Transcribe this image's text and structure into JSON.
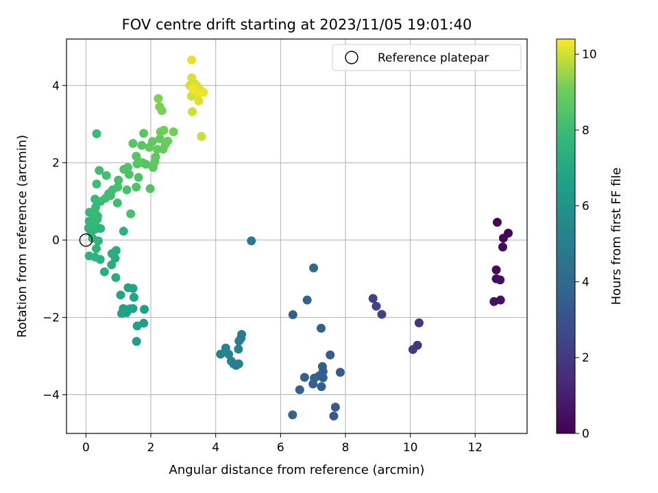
{
  "chart_data": {
    "type": "scatter",
    "title": "FOV centre drift starting at 2023/11/05 19:01:40",
    "xlabel": "Angular distance from reference (arcmin)",
    "ylabel": "Rotation from reference (arcmin)",
    "xlim": [
      -0.6,
      13.6
    ],
    "ylim": [
      -5.0,
      5.2
    ],
    "xticks": [
      0,
      2,
      4,
      6,
      8,
      10,
      12
    ],
    "yticks": [
      -4,
      -2,
      0,
      2,
      4
    ],
    "grid": true,
    "legend": {
      "position": "top-right",
      "entries": [
        "Reference platepar"
      ]
    },
    "reference_point": {
      "x": 0,
      "y": 0
    },
    "colorbar": {
      "label": "Hours from first FF file",
      "range": [
        0,
        10.4
      ],
      "ticks": [
        0,
        2,
        4,
        6,
        8,
        10
      ],
      "colormap": "viridis"
    },
    "points": [
      {
        "x": 12.68,
        "y": 0.46,
        "c": 0.1
      },
      {
        "x": 13.02,
        "y": 0.18,
        "c": 0.15
      },
      {
        "x": 12.87,
        "y": 0.05,
        "c": 0.2
      },
      {
        "x": 12.85,
        "y": -0.18,
        "c": 0.3
      },
      {
        "x": 12.65,
        "y": -0.77,
        "c": 0.35
      },
      {
        "x": 12.65,
        "y": -1.0,
        "c": 0.4
      },
      {
        "x": 12.77,
        "y": -1.03,
        "c": 0.45
      },
      {
        "x": 12.78,
        "y": -1.55,
        "c": 0.5
      },
      {
        "x": 12.58,
        "y": -1.59,
        "c": 0.55
      },
      {
        "x": 10.27,
        "y": -2.14,
        "c": 1.8
      },
      {
        "x": 10.22,
        "y": -2.72,
        "c": 1.9
      },
      {
        "x": 10.08,
        "y": -2.83,
        "c": 2.0
      },
      {
        "x": 8.85,
        "y": -1.51,
        "c": 2.3
      },
      {
        "x": 8.95,
        "y": -1.71,
        "c": 2.4
      },
      {
        "x": 9.12,
        "y": -1.92,
        "c": 2.45
      },
      {
        "x": 7.02,
        "y": -0.72,
        "c": 3.9
      },
      {
        "x": 6.82,
        "y": -1.55,
        "c": 3.7
      },
      {
        "x": 6.38,
        "y": -1.93,
        "c": 3.5
      },
      {
        "x": 7.25,
        "y": -2.28,
        "c": 3.6
      },
      {
        "x": 7.53,
        "y": -2.97,
        "c": 3.4
      },
      {
        "x": 7.29,
        "y": -3.27,
        "c": 3.5
      },
      {
        "x": 7.31,
        "y": -3.4,
        "c": 3.45
      },
      {
        "x": 7.19,
        "y": -3.51,
        "c": 3.55
      },
      {
        "x": 7.04,
        "y": -3.57,
        "c": 3.6
      },
      {
        "x": 7.31,
        "y": -3.56,
        "c": 3.55
      },
      {
        "x": 7.84,
        "y": -3.42,
        "c": 3.3
      },
      {
        "x": 6.74,
        "y": -3.55,
        "c": 3.65
      },
      {
        "x": 7.0,
        "y": -3.72,
        "c": 3.6
      },
      {
        "x": 7.26,
        "y": -3.79,
        "c": 3.5
      },
      {
        "x": 6.59,
        "y": -3.87,
        "c": 3.7
      },
      {
        "x": 7.69,
        "y": -4.32,
        "c": 3.35
      },
      {
        "x": 7.64,
        "y": -4.55,
        "c": 3.3
      },
      {
        "x": 6.37,
        "y": -4.52,
        "c": 3.8
      },
      {
        "x": 5.1,
        "y": -0.02,
        "c": 4.7
      },
      {
        "x": 4.8,
        "y": -2.44,
        "c": 5.0
      },
      {
        "x": 4.72,
        "y": -2.61,
        "c": 5.05
      },
      {
        "x": 4.78,
        "y": -2.54,
        "c": 5.0
      },
      {
        "x": 4.7,
        "y": -2.82,
        "c": 5.1
      },
      {
        "x": 4.31,
        "y": -2.79,
        "c": 5.2
      },
      {
        "x": 4.15,
        "y": -2.95,
        "c": 5.25
      },
      {
        "x": 4.4,
        "y": -2.95,
        "c": 5.2
      },
      {
        "x": 4.48,
        "y": -3.13,
        "c": 5.15
      },
      {
        "x": 4.55,
        "y": -3.2,
        "c": 5.1
      },
      {
        "x": 4.63,
        "y": -3.24,
        "c": 5.05
      },
      {
        "x": 4.71,
        "y": -3.2,
        "c": 5.1
      },
      {
        "x": 1.3,
        "y": -1.23,
        "c": 6.8
      },
      {
        "x": 1.45,
        "y": -1.25,
        "c": 6.75
      },
      {
        "x": 1.07,
        "y": -1.42,
        "c": 6.85
      },
      {
        "x": 1.48,
        "y": -1.48,
        "c": 6.8
      },
      {
        "x": 1.15,
        "y": -1.77,
        "c": 6.7
      },
      {
        "x": 1.35,
        "y": -1.78,
        "c": 6.75
      },
      {
        "x": 1.45,
        "y": -1.77,
        "c": 6.7
      },
      {
        "x": 1.8,
        "y": -1.79,
        "c": 6.6
      },
      {
        "x": 1.1,
        "y": -1.9,
        "c": 6.7
      },
      {
        "x": 1.25,
        "y": -1.88,
        "c": 6.7
      },
      {
        "x": 1.78,
        "y": -2.15,
        "c": 6.55
      },
      {
        "x": 1.58,
        "y": -2.22,
        "c": 6.6
      },
      {
        "x": 1.56,
        "y": -2.62,
        "c": 6.5
      },
      {
        "x": 0.93,
        "y": -0.27,
        "c": 7.2
      },
      {
        "x": 0.9,
        "y": -0.47,
        "c": 7.25
      },
      {
        "x": 0.8,
        "y": -0.35,
        "c": 7.3
      },
      {
        "x": 0.79,
        "y": -0.64,
        "c": 7.3
      },
      {
        "x": 0.57,
        "y": -0.82,
        "c": 7.35
      },
      {
        "x": 0.92,
        "y": -0.97,
        "c": 7.2
      },
      {
        "x": 0.44,
        "y": -0.5,
        "c": 7.4
      },
      {
        "x": 0.28,
        "y": -0.44,
        "c": 7.5
      },
      {
        "x": 0.1,
        "y": -0.41,
        "c": 7.55
      },
      {
        "x": 0.32,
        "y": -0.22,
        "c": 7.55
      },
      {
        "x": 0.38,
        "y": -0.02,
        "c": 7.6
      },
      {
        "x": 0.2,
        "y": 0.05,
        "c": 7.6
      },
      {
        "x": 0.16,
        "y": 0.2,
        "c": 7.65
      },
      {
        "x": 0.28,
        "y": 0.28,
        "c": 7.65
      },
      {
        "x": 0.08,
        "y": 0.31,
        "c": 7.7
      },
      {
        "x": 0.38,
        "y": 0.31,
        "c": 7.7
      },
      {
        "x": 0.45,
        "y": 0.3,
        "c": 7.7
      },
      {
        "x": 1.16,
        "y": 0.23,
        "c": 7.5
      },
      {
        "x": 0.27,
        "y": 0.44,
        "c": 7.75
      },
      {
        "x": 0.1,
        "y": 0.49,
        "c": 7.8
      },
      {
        "x": 0.23,
        "y": 0.55,
        "c": 7.8
      },
      {
        "x": 0.35,
        "y": 0.54,
        "c": 7.8
      },
      {
        "x": 0.11,
        "y": 0.72,
        "c": 7.85
      },
      {
        "x": 0.27,
        "y": 0.72,
        "c": 7.85
      },
      {
        "x": 0.3,
        "y": 0.85,
        "c": 7.9
      },
      {
        "x": 0.36,
        "y": 0.62,
        "c": 7.85
      },
      {
        "x": 0.28,
        "y": 1.06,
        "c": 7.9
      },
      {
        "x": 0.45,
        "y": 1.0,
        "c": 7.95
      },
      {
        "x": 0.33,
        "y": 2.75,
        "c": 7.9
      },
      {
        "x": 0.33,
        "y": 1.45,
        "c": 8.05
      },
      {
        "x": 0.7,
        "y": 1.2,
        "c": 8.1
      },
      {
        "x": 0.97,
        "y": 0.96,
        "c": 8.0
      },
      {
        "x": 0.6,
        "y": 1.08,
        "c": 8.1
      },
      {
        "x": 0.76,
        "y": 1.15,
        "c": 8.1
      },
      {
        "x": 0.82,
        "y": 1.3,
        "c": 8.15
      },
      {
        "x": 0.98,
        "y": 1.37,
        "c": 8.2
      },
      {
        "x": 0.41,
        "y": 1.8,
        "c": 8.1
      },
      {
        "x": 0.63,
        "y": 1.67,
        "c": 8.15
      },
      {
        "x": 1.0,
        "y": 1.55,
        "c": 8.2
      },
      {
        "x": 1.38,
        "y": 0.68,
        "c": 8.3
      },
      {
        "x": 1.26,
        "y": 1.3,
        "c": 8.3
      },
      {
        "x": 1.55,
        "y": 1.37,
        "c": 8.35
      },
      {
        "x": 1.33,
        "y": 1.7,
        "c": 8.35
      },
      {
        "x": 1.17,
        "y": 1.83,
        "c": 8.4
      },
      {
        "x": 1.29,
        "y": 1.88,
        "c": 8.4
      },
      {
        "x": 1.62,
        "y": 1.62,
        "c": 8.45
      },
      {
        "x": 1.98,
        "y": 1.33,
        "c": 8.5
      },
      {
        "x": 1.58,
        "y": 1.97,
        "c": 8.5
      },
      {
        "x": 1.75,
        "y": 2.0,
        "c": 8.55
      },
      {
        "x": 1.85,
        "y": 1.96,
        "c": 8.55
      },
      {
        "x": 1.55,
        "y": 2.17,
        "c": 8.6
      },
      {
        "x": 1.45,
        "y": 2.5,
        "c": 8.6
      },
      {
        "x": 1.72,
        "y": 2.45,
        "c": 8.65
      },
      {
        "x": 1.78,
        "y": 2.76,
        "c": 8.6
      },
      {
        "x": 1.62,
        "y": 2.03,
        "c": 8.65
      },
      {
        "x": 2.07,
        "y": 1.88,
        "c": 8.7
      },
      {
        "x": 2.12,
        "y": 2.02,
        "c": 8.75
      },
      {
        "x": 2.15,
        "y": 2.15,
        "c": 8.75
      },
      {
        "x": 1.95,
        "y": 2.4,
        "c": 8.8
      },
      {
        "x": 2.05,
        "y": 2.55,
        "c": 8.8
      },
      {
        "x": 2.2,
        "y": 2.35,
        "c": 8.85
      },
      {
        "x": 2.28,
        "y": 2.62,
        "c": 8.9
      },
      {
        "x": 2.38,
        "y": 2.35,
        "c": 8.9
      },
      {
        "x": 2.45,
        "y": 2.48,
        "c": 8.95
      },
      {
        "x": 2.52,
        "y": 2.56,
        "c": 9.0
      },
      {
        "x": 2.3,
        "y": 2.8,
        "c": 9.05
      },
      {
        "x": 2.4,
        "y": 2.84,
        "c": 9.05
      },
      {
        "x": 2.7,
        "y": 2.8,
        "c": 9.1
      },
      {
        "x": 2.27,
        "y": 3.45,
        "c": 9.2
      },
      {
        "x": 2.34,
        "y": 3.35,
        "c": 9.2
      },
      {
        "x": 2.23,
        "y": 3.66,
        "c": 9.25
      },
      {
        "x": 3.26,
        "y": 4.66,
        "c": 10.2
      },
      {
        "x": 3.26,
        "y": 4.2,
        "c": 10.1
      },
      {
        "x": 3.35,
        "y": 4.05,
        "c": 10.0
      },
      {
        "x": 3.2,
        "y": 4.0,
        "c": 10.05
      },
      {
        "x": 3.43,
        "y": 3.98,
        "c": 10.1
      },
      {
        "x": 3.53,
        "y": 3.88,
        "c": 10.15
      },
      {
        "x": 3.62,
        "y": 3.82,
        "c": 10.2
      },
      {
        "x": 3.25,
        "y": 3.72,
        "c": 10.0
      },
      {
        "x": 3.4,
        "y": 3.75,
        "c": 10.05
      },
      {
        "x": 3.48,
        "y": 3.6,
        "c": 10.1
      },
      {
        "x": 3.28,
        "y": 3.32,
        "c": 10.0
      },
      {
        "x": 3.56,
        "y": 2.68,
        "c": 9.95
      },
      {
        "x": 3.3,
        "y": 3.9,
        "c": 10.3
      },
      {
        "x": 3.5,
        "y": 3.8,
        "c": 10.25
      }
    ]
  }
}
